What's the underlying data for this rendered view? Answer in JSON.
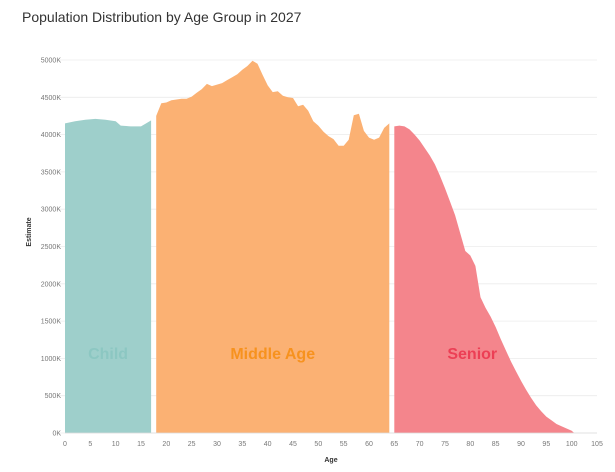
{
  "title": "Population Distribution by Age Group in 2027",
  "chart_data": {
    "type": "area",
    "title": "Population Distribution by Age Group in 2027",
    "xlabel": "Age",
    "ylabel": "Estimate",
    "xlim": [
      0,
      105
    ],
    "ylim": [
      0,
      5000000
    ],
    "x_ticks": [
      0,
      5,
      10,
      15,
      20,
      25,
      30,
      35,
      40,
      45,
      50,
      55,
      60,
      65,
      70,
      75,
      80,
      85,
      90,
      95,
      100,
      105
    ],
    "y_ticks": [
      {
        "value": 0,
        "label": "0K"
      },
      {
        "value": 500000,
        "label": "500K"
      },
      {
        "value": 1000000,
        "label": "1000K"
      },
      {
        "value": 1500000,
        "label": "1500K"
      },
      {
        "value": 2000000,
        "label": "2000K"
      },
      {
        "value": 2500000,
        "label": "2500K"
      },
      {
        "value": 3000000,
        "label": "3000K"
      },
      {
        "value": 3500000,
        "label": "3500K"
      },
      {
        "value": 4000000,
        "label": "4000K"
      },
      {
        "value": 4500000,
        "label": "4500K"
      },
      {
        "value": 5000000,
        "label": "5000K"
      }
    ],
    "grid": true,
    "series": [
      {
        "name": "Child",
        "color": "#9ecfcb",
        "label_color": "#8cc7c2",
        "sublabel": "",
        "points": [
          [
            0,
            4150000
          ],
          [
            2,
            4180000
          ],
          [
            4,
            4200000
          ],
          [
            6,
            4210000
          ],
          [
            8,
            4200000
          ],
          [
            10,
            4180000
          ],
          [
            11,
            4120000
          ],
          [
            13,
            4110000
          ],
          [
            15,
            4110000
          ],
          [
            16,
            4150000
          ],
          [
            17,
            4190000
          ]
        ]
      },
      {
        "name": "Middle Age",
        "color": "#fbb173",
        "label_color": "#f7921e",
        "sublabel": "",
        "points": [
          [
            18,
            4250000
          ],
          [
            19,
            4420000
          ],
          [
            20,
            4430000
          ],
          [
            21,
            4460000
          ],
          [
            22,
            4470000
          ],
          [
            23,
            4480000
          ],
          [
            24,
            4480000
          ],
          [
            25,
            4510000
          ],
          [
            26,
            4560000
          ],
          [
            27,
            4610000
          ],
          [
            28,
            4680000
          ],
          [
            29,
            4650000
          ],
          [
            30,
            4670000
          ],
          [
            31,
            4690000
          ],
          [
            32,
            4730000
          ],
          [
            33,
            4770000
          ],
          [
            34,
            4810000
          ],
          [
            35,
            4870000
          ],
          [
            36,
            4920000
          ],
          [
            37,
            4990000
          ],
          [
            38,
            4950000
          ],
          [
            39,
            4800000
          ],
          [
            40,
            4660000
          ],
          [
            41,
            4570000
          ],
          [
            42,
            4580000
          ],
          [
            43,
            4520000
          ],
          [
            44,
            4500000
          ],
          [
            45,
            4490000
          ],
          [
            46,
            4380000
          ],
          [
            47,
            4400000
          ],
          [
            48,
            4320000
          ],
          [
            49,
            4180000
          ],
          [
            50,
            4120000
          ],
          [
            51,
            4040000
          ],
          [
            52,
            3980000
          ],
          [
            53,
            3940000
          ],
          [
            54,
            3850000
          ],
          [
            55,
            3850000
          ],
          [
            56,
            3930000
          ],
          [
            57,
            4260000
          ],
          [
            58,
            4280000
          ],
          [
            59,
            4050000
          ],
          [
            60,
            3960000
          ],
          [
            61,
            3930000
          ],
          [
            62,
            3960000
          ],
          [
            63,
            4090000
          ],
          [
            64,
            4150000
          ]
        ]
      },
      {
        "name": "Senior",
        "color": "#f4858c",
        "label_color": "#ec3f55",
        "sublabel": "",
        "points": [
          [
            65,
            4110000
          ],
          [
            66,
            4120000
          ],
          [
            67,
            4110000
          ],
          [
            68,
            4070000
          ],
          [
            69,
            4000000
          ],
          [
            70,
            3920000
          ],
          [
            71,
            3820000
          ],
          [
            72,
            3720000
          ],
          [
            73,
            3600000
          ],
          [
            74,
            3450000
          ],
          [
            75,
            3280000
          ],
          [
            76,
            3100000
          ],
          [
            77,
            2920000
          ],
          [
            78,
            2680000
          ],
          [
            79,
            2440000
          ],
          [
            80,
            2380000
          ],
          [
            81,
            2240000
          ],
          [
            82,
            1820000
          ],
          [
            83,
            1680000
          ],
          [
            84,
            1560000
          ],
          [
            85,
            1420000
          ],
          [
            86,
            1260000
          ],
          [
            87,
            1110000
          ],
          [
            88,
            960000
          ],
          [
            89,
            830000
          ],
          [
            90,
            700000
          ],
          [
            91,
            580000
          ],
          [
            92,
            470000
          ],
          [
            93,
            370000
          ],
          [
            94,
            290000
          ],
          [
            95,
            220000
          ],
          [
            96,
            170000
          ],
          [
            97,
            120000
          ],
          [
            98,
            90000
          ],
          [
            99,
            60000
          ],
          [
            100,
            30000
          ],
          [
            100.5,
            0
          ]
        ]
      }
    ]
  }
}
